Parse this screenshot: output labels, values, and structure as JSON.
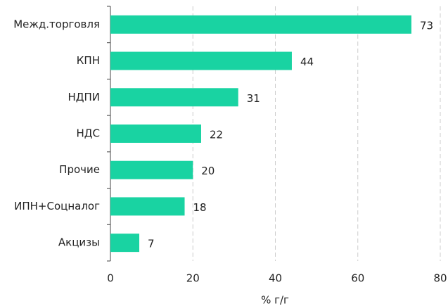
{
  "chart_data": {
    "type": "barh",
    "categories": [
      "Межд.торговля",
      "КПН",
      "НДПИ",
      "НДС",
      "Прочие",
      "ИПН+Соцналог",
      "Акцизы"
    ],
    "values": [
      73,
      44,
      31,
      22,
      20,
      18,
      7
    ],
    "color": "#19d3a2",
    "xlabel": "% г/г",
    "xlim": [
      0,
      80
    ],
    "xticks": [
      0,
      20,
      40,
      60,
      80
    ],
    "grid": true
  }
}
